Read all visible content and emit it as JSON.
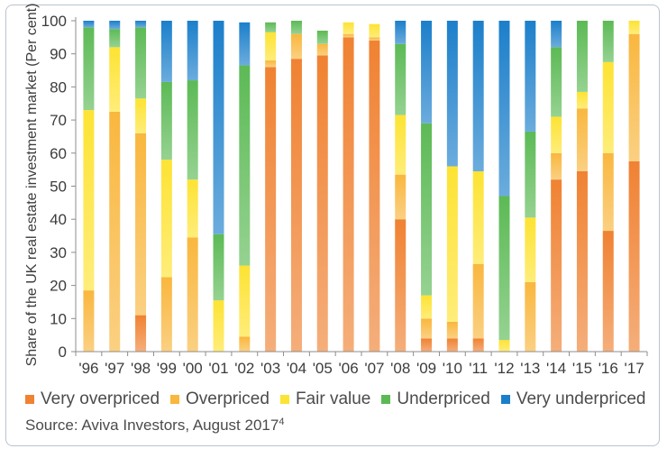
{
  "colors": {
    "very_overpriced": "#f08232",
    "overpriced": "#f9b73e",
    "fair_value": "#fde333",
    "underpriced": "#5cba55",
    "very_underpriced": "#1c7fca",
    "axis": "#8c8c8c",
    "text": "#3c3c3c",
    "border": "#b9c3cf"
  },
  "chart_data": {
    "type": "bar",
    "stacked": true,
    "categories": [
      "'96",
      "'97",
      "'98",
      "'99",
      "'00",
      "'01",
      "'02",
      "'03",
      "'04",
      "'05",
      "'06",
      "'07",
      "'08",
      "'09",
      "'10",
      "'11",
      "'12",
      "'13",
      "'14",
      "'15",
      "'16",
      "'17"
    ],
    "ylabel": "Share of the UK real estate investment market (Per cent)",
    "xlabel": "",
    "ylim": [
      0,
      100
    ],
    "yticks": [
      0,
      10,
      20,
      30,
      40,
      50,
      60,
      70,
      80,
      90,
      100
    ],
    "grid": false,
    "legend_position": "bottom",
    "series": [
      {
        "name": "Very overpriced",
        "color_key": "very_overpriced",
        "values": [
          0,
          0,
          11,
          0,
          0,
          0,
          0,
          86,
          88.5,
          89.5,
          95,
          94,
          40,
          4,
          4,
          4,
          0,
          0,
          52,
          54.5,
          36.5,
          57.5
        ]
      },
      {
        "name": "Overpriced",
        "color_key": "overpriced",
        "values": [
          18.5,
          72.5,
          55,
          22.5,
          34.5,
          0,
          4.5,
          2,
          7.5,
          3.5,
          1,
          1,
          13.5,
          6,
          5,
          22.5,
          0,
          21,
          8,
          19,
          23.5,
          38.5
        ]
      },
      {
        "name": "Fair value",
        "color_key": "fair_value",
        "values": [
          54.5,
          19.5,
          10.5,
          35.5,
          17.5,
          15.5,
          21.5,
          8.5,
          0,
          0,
          3.5,
          4,
          18,
          7,
          47,
          28,
          3.5,
          19.5,
          11,
          5,
          27.5,
          4
        ]
      },
      {
        "name": "Underpriced",
        "color_key": "underpriced",
        "values": [
          25,
          5.5,
          21.5,
          23.5,
          30,
          20,
          60.5,
          3,
          4,
          4,
          0,
          0,
          21.5,
          52,
          0,
          0,
          43.5,
          26,
          21,
          21.5,
          12.5,
          0
        ]
      },
      {
        "name": "Very underpriced",
        "color_key": "very_underpriced",
        "values": [
          2,
          2.5,
          2,
          18.5,
          18,
          64.5,
          13,
          0,
          0,
          0,
          0,
          0,
          7,
          31,
          44,
          45.5,
          53,
          33.5,
          8,
          0,
          0,
          0
        ]
      }
    ]
  },
  "legend": [
    {
      "label": "Very overpriced",
      "color_key": "very_overpriced"
    },
    {
      "label": "Overpriced",
      "color_key": "overpriced"
    },
    {
      "label": "Fair value",
      "color_key": "fair_value"
    },
    {
      "label": "Underpriced",
      "color_key": "underpriced"
    },
    {
      "label": "Very underpriced",
      "color_key": "very_underpriced"
    }
  ],
  "source": {
    "text": "Source: Aviva Investors, August 2017",
    "note_marker": "4"
  }
}
